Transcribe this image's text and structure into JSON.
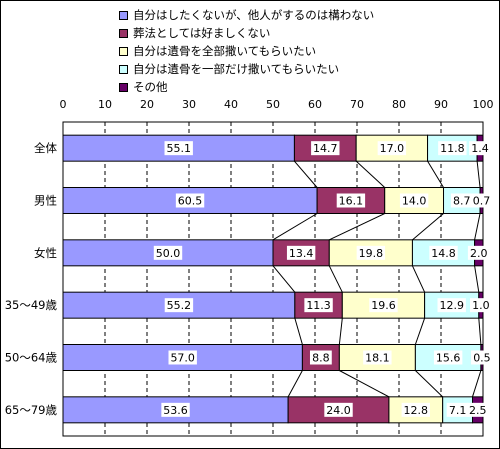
{
  "chart_data": {
    "type": "bar",
    "stacked": true,
    "orientation": "horizontal",
    "categories": [
      "全体",
      "男性",
      "女性",
      "35～49歳",
      "50～64歳",
      "65～79歳"
    ],
    "series": [
      {
        "name": "自分はしたくないが、他人がするのは構わない",
        "color": "#9999ff",
        "values": [
          55.1,
          60.5,
          50.0,
          55.2,
          57.0,
          53.6
        ],
        "labels": [
          "55.1",
          "60.5",
          "50.0",
          "55.2",
          "57.0",
          "53.6"
        ]
      },
      {
        "name": "葬法としては好ましくない",
        "color": "#993366",
        "values": [
          14.7,
          16.1,
          13.4,
          11.3,
          8.8,
          24.0
        ],
        "labels": [
          "14.7",
          "16.1",
          "13.4",
          "11.3",
          "8.8",
          "24.0"
        ]
      },
      {
        "name": "自分は遺骨を全部撒いてもらいたい",
        "color": "#ffffcc",
        "values": [
          17.0,
          14.0,
          19.8,
          19.6,
          18.1,
          12.8
        ],
        "labels": [
          "17.0",
          "14.0",
          "19.8",
          "19.6",
          "18.1",
          "12.8"
        ]
      },
      {
        "name": "自分は遺骨を一部だけ撒いてもらいたい",
        "color": "#ccffff",
        "values": [
          11.8,
          8.7,
          14.8,
          12.9,
          15.6,
          7.1
        ],
        "labels": [
          "11.8",
          "8.7",
          "14.8",
          "12.9",
          "15.6",
          "7.1"
        ]
      },
      {
        "name": "その他",
        "color": "#660066",
        "values": [
          1.4,
          0.7,
          2.0,
          1.0,
          0.5,
          2.5
        ],
        "labels": [
          "1.4",
          "0.7",
          "2.0",
          "1.0",
          "0.5",
          "2.5"
        ]
      }
    ],
    "xlim": [
      0,
      100
    ],
    "xticks": [
      "0",
      "10",
      "20",
      "30",
      "40",
      "50",
      "60",
      "70",
      "80",
      "90",
      "100"
    ],
    "grid": "dashed vertical",
    "legend_position": "top",
    "series_lines": true
  }
}
